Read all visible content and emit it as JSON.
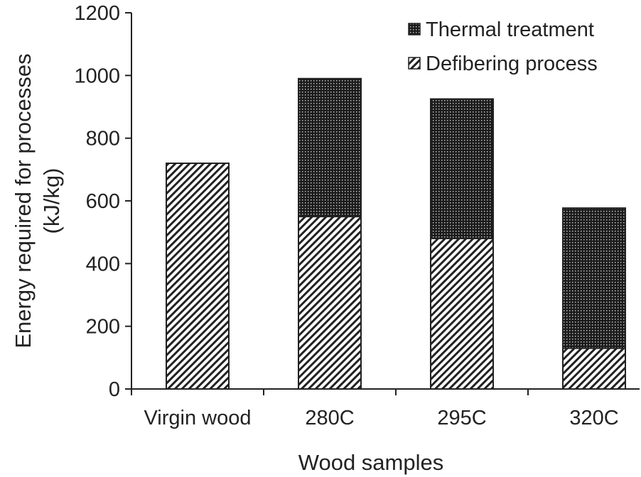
{
  "chart_data": {
    "type": "bar",
    "stacked": true,
    "title": "",
    "xlabel": "Wood samples",
    "ylabel_line1": "Energy required for processes",
    "ylabel_line2": "(kJ/kg)",
    "categories": [
      "Virgin wood",
      "280C",
      "295C",
      "320C"
    ],
    "series": [
      {
        "name": "Defibering process",
        "values": [
          720,
          550,
          480,
          130
        ],
        "pattern": "diagonal-hatch"
      },
      {
        "name": "Thermal treatment",
        "values": [
          0,
          440,
          445,
          447
        ],
        "pattern": "dense-dots"
      }
    ],
    "legend_order": [
      "Thermal treatment",
      "Defibering process"
    ],
    "legend_position": "top-right",
    "ylim": [
      0,
      1200
    ],
    "yticks": [
      "0",
      "200",
      "400",
      "600",
      "800",
      "1000",
      "1200"
    ],
    "grid": false,
    "colors": {
      "ink": "#222222",
      "background": "#ffffff"
    }
  }
}
